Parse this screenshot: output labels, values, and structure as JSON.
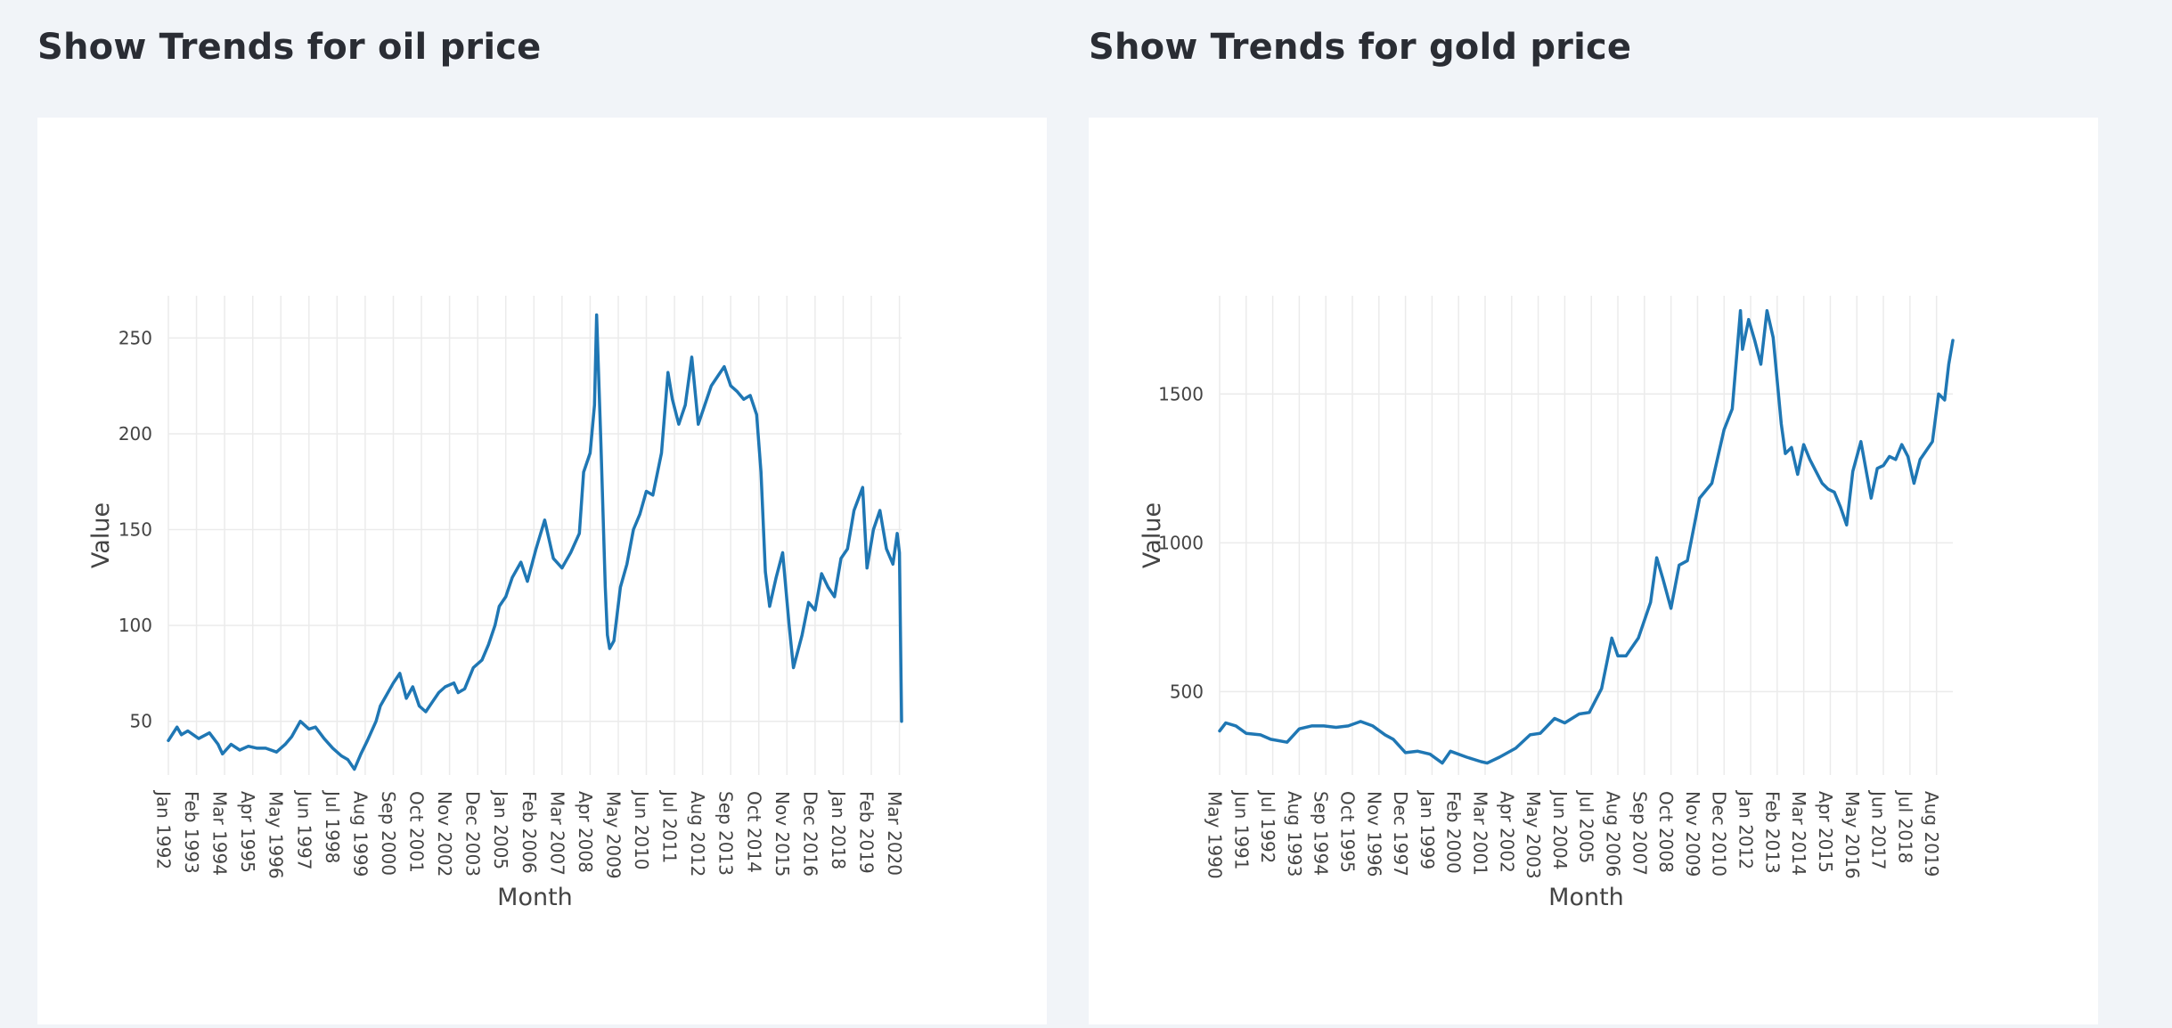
{
  "panels": [
    {
      "title": "Show Trends for oil price"
    },
    {
      "title": "Show Trends for gold price"
    }
  ],
  "colors": {
    "line": "#1f77b4",
    "grid": "#ebebeb",
    "background": "#f1f4f8",
    "card": "#ffffff"
  },
  "chart_data": [
    {
      "type": "line",
      "xlabel": "Month",
      "ylabel": "Value",
      "x_range": [
        "1992-01",
        "2020-04"
      ],
      "ylim": [
        22,
        272
      ],
      "yticks": [
        50,
        100,
        150,
        200,
        250
      ],
      "xticks": [
        "Jan 1992",
        "Feb 1993",
        "Mar 1994",
        "Apr 1995",
        "May 1996",
        "Jun 1997",
        "Jul 1998",
        "Aug 1999",
        "Sep 2000",
        "Oct 2001",
        "Nov 2002",
        "Dec 2003",
        "Jan 2005",
        "Feb 2006",
        "Mar 2007",
        "Apr 2008",
        "May 2009",
        "Jun 2010",
        "Jul 2011",
        "Aug 2012",
        "Sep 2013",
        "Oct 2014",
        "Nov 2015",
        "Dec 2016",
        "Jan 2018",
        "Feb 2019",
        "Mar 2020"
      ],
      "grid": true,
      "series": [
        {
          "x": [
            "1992-01",
            "1992-05",
            "1992-07",
            "1992-10",
            "1993-03",
            "1993-08",
            "1993-12",
            "1994-02",
            "1994-06",
            "1994-10",
            "1995-02",
            "1995-06",
            "1995-10",
            "1996-03",
            "1996-07",
            "1996-10",
            "1997-02",
            "1997-06",
            "1997-09",
            "1998-01",
            "1998-05",
            "1998-09",
            "1998-12",
            "1999-03",
            "1999-06",
            "1999-09",
            "2000-01",
            "2000-03",
            "2000-06",
            "2000-09",
            "2000-12",
            "2001-03",
            "2001-06",
            "2001-09",
            "2001-12",
            "2002-03",
            "2002-06",
            "2002-09",
            "2003-01",
            "2003-03",
            "2003-06",
            "2003-10",
            "2004-02",
            "2004-05",
            "2004-08",
            "2004-10",
            "2005-01",
            "2005-04",
            "2005-08",
            "2005-11",
            "2006-03",
            "2006-07",
            "2006-11",
            "2007-03",
            "2007-07",
            "2007-11",
            "2008-01",
            "2008-04",
            "2008-06",
            "2008-07",
            "2008-09",
            "2008-11",
            "2008-12",
            "2009-01",
            "2009-03",
            "2009-06",
            "2009-09",
            "2009-12",
            "2010-03",
            "2010-06",
            "2010-09",
            "2011-01",
            "2011-04",
            "2011-06",
            "2011-09",
            "2011-12",
            "2012-03",
            "2012-06",
            "2012-09",
            "2012-12",
            "2013-03",
            "2013-06",
            "2013-09",
            "2013-12",
            "2014-03",
            "2014-06",
            "2014-09",
            "2014-11",
            "2015-01",
            "2015-03",
            "2015-06",
            "2015-09",
            "2015-12",
            "2016-02",
            "2016-06",
            "2016-09",
            "2016-12",
            "2017-03",
            "2017-06",
            "2017-09",
            "2017-12",
            "2018-03",
            "2018-06",
            "2018-10",
            "2018-12",
            "2019-03",
            "2019-06",
            "2019-09",
            "2019-12",
            "2020-02",
            "2020-03",
            "2020-04"
          ],
          "y": [
            40,
            47,
            43,
            45,
            41,
            44,
            38,
            33,
            38,
            35,
            37,
            36,
            36,
            34,
            38,
            42,
            50,
            46,
            47,
            41,
            36,
            32,
            30,
            25,
            33,
            40,
            50,
            58,
            64,
            70,
            75,
            62,
            68,
            58,
            55,
            60,
            65,
            68,
            70,
            65,
            67,
            78,
            82,
            90,
            100,
            110,
            115,
            125,
            133,
            123,
            140,
            155,
            135,
            130,
            138,
            148,
            180,
            190,
            215,
            262,
            195,
            120,
            95,
            88,
            92,
            120,
            132,
            150,
            158,
            170,
            168,
            190,
            232,
            218,
            205,
            215,
            240,
            205,
            215,
            225,
            230,
            235,
            225,
            222,
            218,
            220,
            210,
            180,
            128,
            110,
            125,
            138,
            100,
            78,
            95,
            112,
            108,
            127,
            120,
            115,
            135,
            140,
            160,
            172,
            130,
            150,
            160,
            140,
            132,
            148,
            138,
            50
          ]
        }
      ]
    },
    {
      "type": "line",
      "xlabel": "Month",
      "ylabel": "Value",
      "x_range": [
        "1990-05",
        "2020-04"
      ],
      "ylim": [
        220,
        1830
      ],
      "yticks": [
        500,
        1000,
        1500
      ],
      "xticks": [
        "May 1990",
        "Jun 1991",
        "Jul 1992",
        "Aug 1993",
        "Sep 1994",
        "Oct 1995",
        "Nov 1996",
        "Dec 1997",
        "Jan 1999",
        "Feb 2000",
        "Mar 2001",
        "Apr 2002",
        "May 2003",
        "Jun 2004",
        "Jul 2005",
        "Aug 2006",
        "Sep 2007",
        "Oct 2008",
        "Nov 2009",
        "Dec 2010",
        "Jan 2012",
        "Feb 2013",
        "Mar 2014",
        "Apr 2015",
        "May 2016",
        "Jun 2017",
        "Jul 2018",
        "Aug 2019"
      ],
      "grid": true,
      "series": [
        {
          "x": [
            "1990-05",
            "1990-08",
            "1991-01",
            "1991-06",
            "1992-01",
            "1992-06",
            "1993-02",
            "1993-08",
            "1994-02",
            "1994-08",
            "1995-02",
            "1995-08",
            "1996-02",
            "1996-08",
            "1997-02",
            "1997-06",
            "1997-12",
            "1998-06",
            "1998-12",
            "1999-06",
            "1999-10",
            "2000-06",
            "2001-01",
            "2001-04",
            "2001-10",
            "2002-06",
            "2003-01",
            "2003-06",
            "2004-01",
            "2004-06",
            "2005-01",
            "2005-06",
            "2005-12",
            "2006-05",
            "2006-08",
            "2006-12",
            "2007-06",
            "2007-12",
            "2008-03",
            "2008-06",
            "2008-10",
            "2009-02",
            "2009-06",
            "2009-12",
            "2010-06",
            "2010-12",
            "2011-04",
            "2011-08",
            "2011-09",
            "2011-12",
            "2012-03",
            "2012-06",
            "2012-09",
            "2012-12",
            "2013-04",
            "2013-06",
            "2013-09",
            "2013-12",
            "2014-03",
            "2014-06",
            "2014-09",
            "2014-12",
            "2015-03",
            "2015-06",
            "2015-09",
            "2015-12",
            "2016-03",
            "2016-07",
            "2016-12",
            "2017-03",
            "2017-06",
            "2017-09",
            "2017-12",
            "2018-03",
            "2018-06",
            "2018-09",
            "2018-12",
            "2019-03",
            "2019-06",
            "2019-09",
            "2019-12",
            "2020-02",
            "2020-04"
          ],
          "y": [
            368,
            395,
            385,
            360,
            355,
            340,
            330,
            375,
            385,
            385,
            380,
            385,
            400,
            385,
            355,
            340,
            295,
            300,
            290,
            260,
            300,
            280,
            265,
            260,
            280,
            310,
            355,
            360,
            410,
            395,
            425,
            430,
            510,
            680,
            620,
            620,
            680,
            800,
            950,
            880,
            780,
            925,
            940,
            1150,
            1200,
            1380,
            1450,
            1780,
            1650,
            1750,
            1680,
            1600,
            1780,
            1690,
            1400,
            1300,
            1320,
            1230,
            1330,
            1280,
            1240,
            1200,
            1180,
            1170,
            1120,
            1060,
            1240,
            1340,
            1150,
            1250,
            1260,
            1290,
            1280,
            1330,
            1290,
            1200,
            1280,
            1310,
            1340,
            1500,
            1480,
            1600,
            1680
          ]
        }
      ]
    }
  ]
}
